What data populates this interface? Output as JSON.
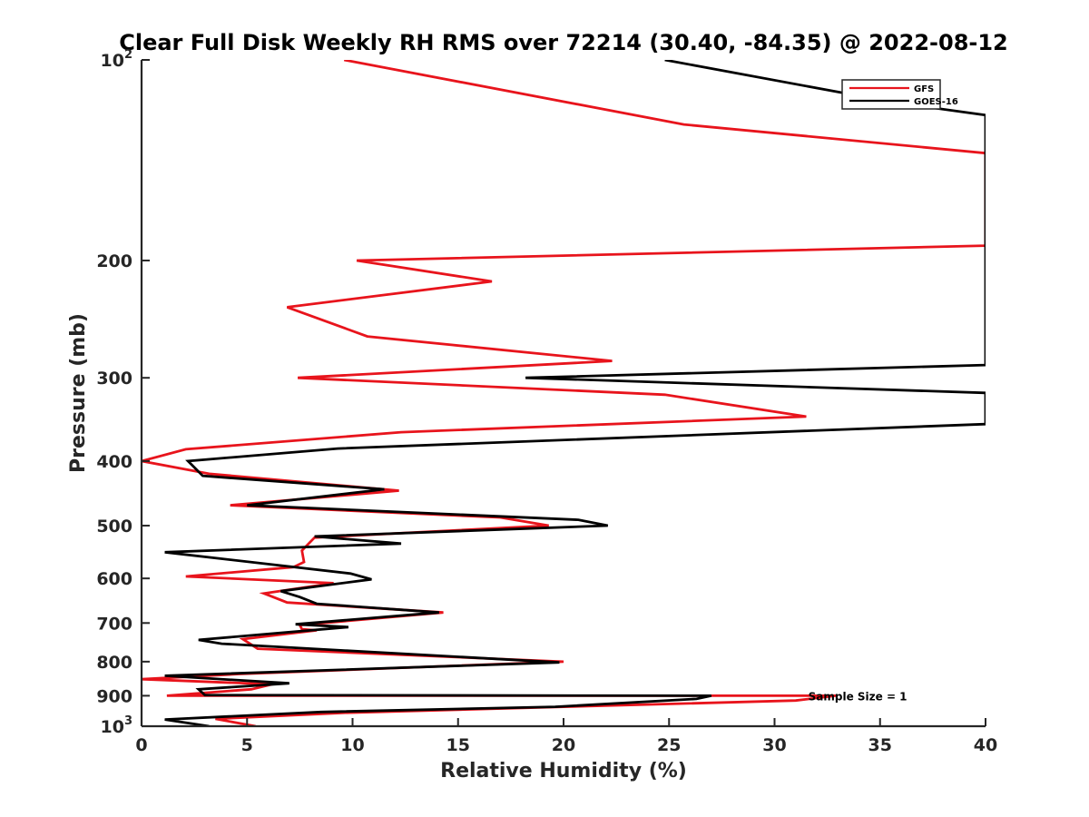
{
  "chart_data": {
    "type": "line",
    "title": "Clear Full Disk Weekly RH RMS over 72214 (30.40, -84.35) @ 2022-08-12",
    "xlabel": "Relative Humidity (%)",
    "ylabel": "Pressure (mb)",
    "xlim": [
      0,
      40
    ],
    "ylim": [
      100,
      1000
    ],
    "yscale": "log",
    "y_reversed": true,
    "x_ticks": [
      "0",
      "5",
      "10",
      "15",
      "20",
      "25",
      "30",
      "35",
      "40"
    ],
    "y_ticks": [
      {
        "value": 100,
        "label": "10",
        "sup": "2"
      },
      {
        "value": 200,
        "label": "200",
        "sup": ""
      },
      {
        "value": 300,
        "label": "300",
        "sup": ""
      },
      {
        "value": 400,
        "label": "400",
        "sup": ""
      },
      {
        "value": 500,
        "label": "500",
        "sup": ""
      },
      {
        "value": 600,
        "label": "600",
        "sup": ""
      },
      {
        "value": 700,
        "label": "700",
        "sup": ""
      },
      {
        "value": 800,
        "label": "800",
        "sup": ""
      },
      {
        "value": 900,
        "label": "900",
        "sup": ""
      },
      {
        "value": 1000,
        "label": "10",
        "sup": "3"
      }
    ],
    "legend_position": "top-right",
    "annotation": "Sample Size = 1",
    "annotation_at": {
      "x": 32.5,
      "y": 900
    },
    "series": [
      {
        "name": "GFS",
        "color": "#e8141c",
        "points": [
          [
            9.6,
            100
          ],
          [
            25.7,
            125
          ],
          [
            40,
            138
          ],
          [
            40,
            190
          ],
          [
            10.2,
            200
          ],
          [
            16.6,
            215
          ],
          [
            6.9,
            235
          ],
          [
            10.7,
            260
          ],
          [
            22.3,
            283
          ],
          [
            7.4,
            300
          ],
          [
            24.8,
            318
          ],
          [
            31.5,
            343
          ],
          [
            12.3,
            362
          ],
          [
            2.1,
            384
          ],
          [
            0,
            400
          ],
          [
            3.2,
            418
          ],
          [
            12.2,
            443
          ],
          [
            4.2,
            466
          ],
          [
            17,
            486
          ],
          [
            19.3,
            500
          ],
          [
            8.2,
            521
          ],
          [
            7.6,
            545
          ],
          [
            7.7,
            567
          ],
          [
            7.2,
            577
          ],
          [
            2.1,
            596
          ],
          [
            9.1,
            610
          ],
          [
            5.8,
            632
          ],
          [
            6.9,
            652
          ],
          [
            14.3,
            675
          ],
          [
            7.5,
            705
          ],
          [
            7.6,
            715
          ],
          [
            8.3,
            718
          ],
          [
            4.8,
            740
          ],
          [
            5.5,
            765
          ],
          [
            20,
            800
          ],
          [
            4.6,
            835
          ],
          [
            0,
            850
          ],
          [
            6.2,
            865
          ],
          [
            5.2,
            880
          ],
          [
            1.2,
            900
          ],
          [
            32.9,
            900
          ],
          [
            31,
            915
          ],
          [
            20,
            935
          ],
          [
            9.5,
            955
          ],
          [
            3.5,
            975
          ],
          [
            5.4,
            1000
          ]
        ]
      },
      {
        "name": "GOES-16",
        "color": "#000000",
        "points": [
          [
            24.8,
            100
          ],
          [
            35.8,
            116
          ],
          [
            40,
            121
          ],
          [
            40,
            287
          ],
          [
            18.2,
            300
          ],
          [
            40,
            316
          ],
          [
            40,
            352
          ],
          [
            9.3,
            383
          ],
          [
            2.2,
            400
          ],
          [
            2.9,
            421
          ],
          [
            11.5,
            441
          ],
          [
            5,
            466
          ],
          [
            20.7,
            490
          ],
          [
            22.1,
            500
          ],
          [
            8.2,
            519
          ],
          [
            12.3,
            532
          ],
          [
            1.1,
            548
          ],
          [
            9.9,
            590
          ],
          [
            10.9,
            602
          ],
          [
            6.6,
            627
          ],
          [
            7.5,
            640
          ],
          [
            8.3,
            655
          ],
          [
            14.1,
            675
          ],
          [
            7.3,
            703
          ],
          [
            9.8,
            710
          ],
          [
            2.7,
            742
          ],
          [
            3.8,
            752
          ],
          [
            19.8,
            802
          ],
          [
            1.1,
            840
          ],
          [
            7,
            862
          ],
          [
            2.7,
            880
          ],
          [
            3,
            898
          ],
          [
            27,
            900
          ],
          [
            26.3,
            910
          ],
          [
            19.6,
            935
          ],
          [
            8.5,
            952
          ],
          [
            1.1,
            977
          ],
          [
            3.2,
            1000
          ]
        ]
      }
    ]
  }
}
